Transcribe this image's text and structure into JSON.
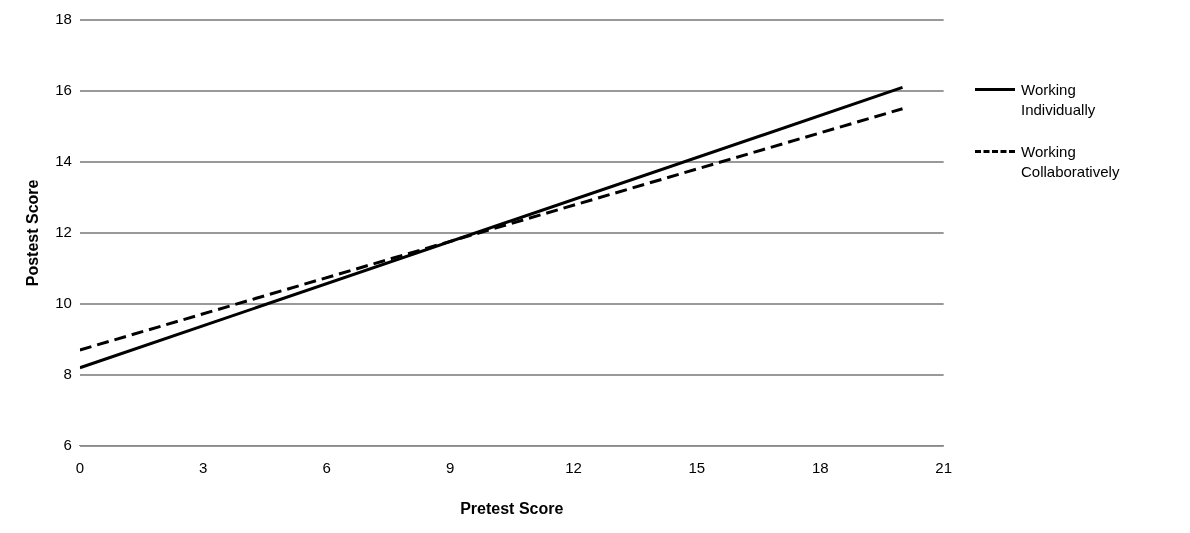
{
  "chart_data": {
    "type": "line",
    "xlabel": "Pretest Score",
    "ylabel": "Postest Score",
    "x": [
      0,
      20
    ],
    "series": [
      {
        "name": "Working Individually",
        "color": "#000000",
        "values": [
          8.2,
          16.1
        ],
        "line_style": "solid"
      },
      {
        "name": "Working Collaboratively",
        "color": "#000000",
        "values": [
          8.7,
          15.5
        ],
        "line_style": "dashed"
      }
    ],
    "xlim": [
      0,
      21
    ],
    "xticks": [
      0,
      3,
      6,
      9,
      12,
      15,
      18,
      21
    ],
    "ylim": [
      6,
      18
    ],
    "yticks": [
      6,
      8,
      10,
      12,
      14,
      16,
      18
    ],
    "grid": "y",
    "legend": "right",
    "marker": "none"
  }
}
